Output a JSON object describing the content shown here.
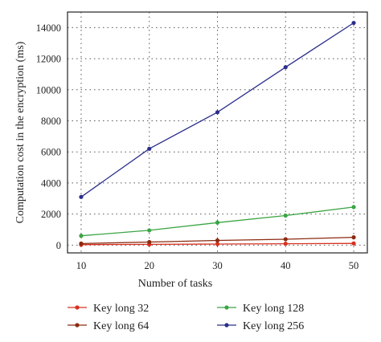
{
  "chart_data": {
    "type": "line",
    "xlabel": "Number of tasks",
    "ylabel": "Computation cost in the encryption (ms)",
    "x": [
      10,
      20,
      30,
      40,
      50
    ],
    "xlim": [
      8,
      52
    ],
    "ylim": [
      -500,
      15000
    ],
    "xticks": [
      "10",
      "20",
      "30",
      "40",
      "50"
    ],
    "yticks": [
      "0",
      "2000",
      "4000",
      "6000",
      "8000",
      "10000",
      "12000",
      "14000"
    ],
    "grid": true,
    "legend_position": "bottom",
    "series": [
      {
        "name": "Key long 32",
        "color": "#d7301f",
        "values": [
          30,
          50,
          70,
          90,
          110
        ]
      },
      {
        "name": "Key long 64",
        "color": "#8b2a10",
        "values": [
          100,
          200,
          300,
          380,
          500
        ]
      },
      {
        "name": "Key long 128",
        "color": "#3aa543",
        "values": [
          600,
          950,
          1450,
          1900,
          2450
        ]
      },
      {
        "name": "Key long 256",
        "color": "#2b2e8c",
        "values": [
          3100,
          6200,
          8550,
          11450,
          14300
        ]
      }
    ]
  }
}
